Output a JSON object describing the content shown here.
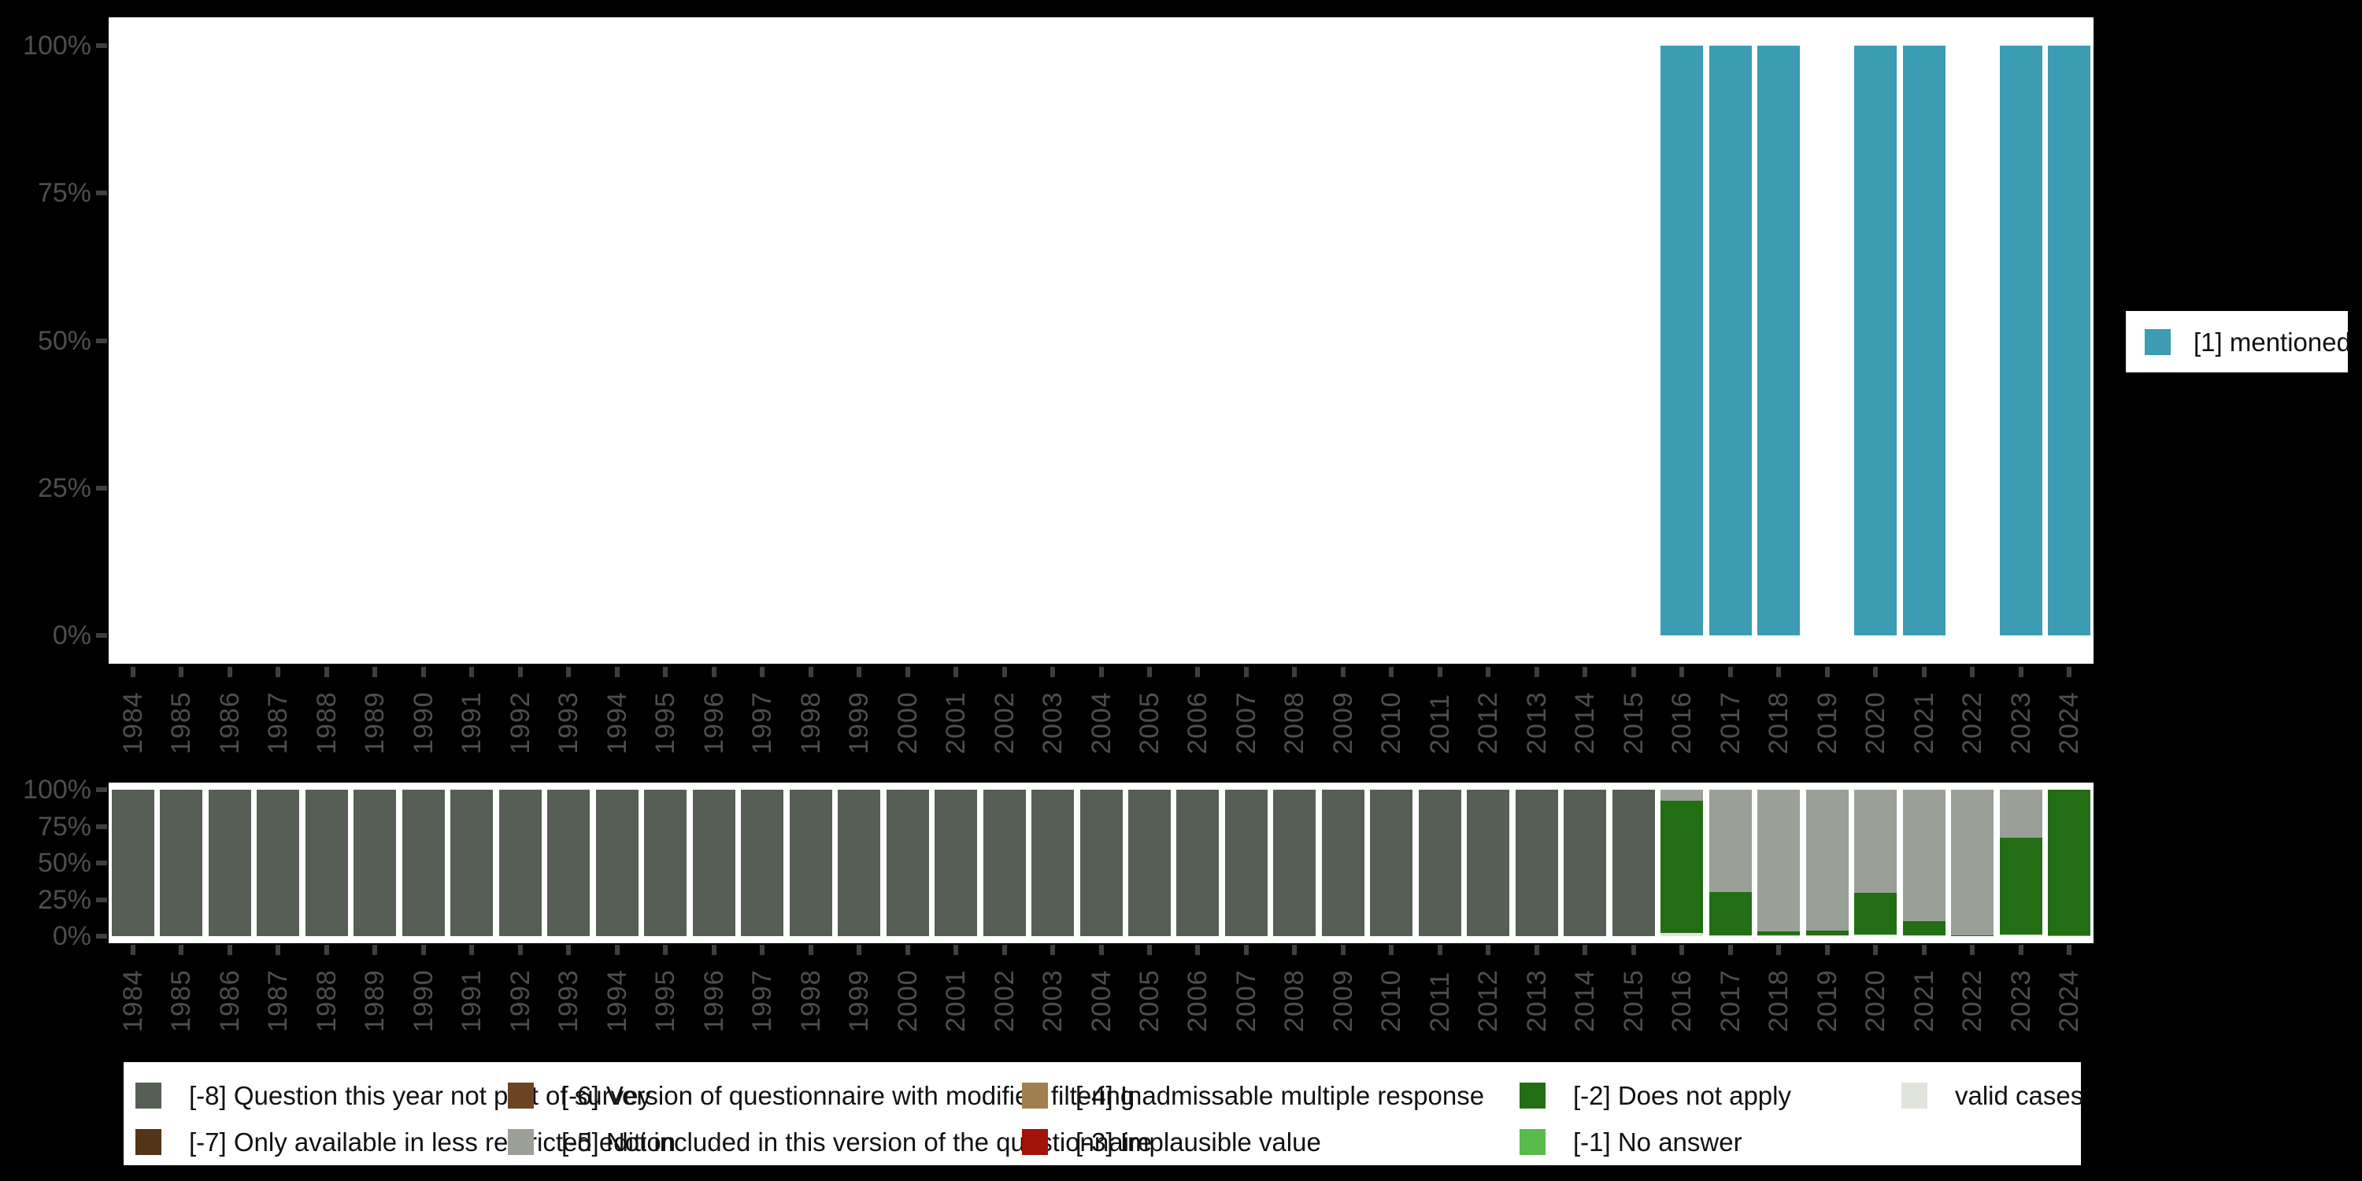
{
  "page": {
    "background": "#000000",
    "panel_background": "#ffffff"
  },
  "colors": {
    "mentioned": "#3b9cb2",
    "m8": "#565e56",
    "m7": "#533418",
    "m6": "#6b4423",
    "m5": "#9aa098",
    "m4": "#a1804f",
    "m3": "#a21309",
    "m2": "#236e15",
    "m1": "#58bb4c",
    "valid": "#e0e4dc",
    "axis_text": "#4e4e4e",
    "tick": "#3f3f3f"
  },
  "years": [
    "1984",
    "1985",
    "1986",
    "1987",
    "1988",
    "1989",
    "1990",
    "1991",
    "1992",
    "1993",
    "1994",
    "1995",
    "1996",
    "1997",
    "1998",
    "1999",
    "2000",
    "2001",
    "2002",
    "2003",
    "2004",
    "2005",
    "2006",
    "2007",
    "2008",
    "2009",
    "2010",
    "2011",
    "2012",
    "2013",
    "2014",
    "2015",
    "2016",
    "2017",
    "2018",
    "2019",
    "2020",
    "2021",
    "2022",
    "2023",
    "2024"
  ],
  "y_axis_ticks": [
    {
      "label": "100%",
      "pct": 100
    },
    {
      "label": "75%",
      "pct": 75
    },
    {
      "label": "50%",
      "pct": 50
    },
    {
      "label": "25%",
      "pct": 25
    },
    {
      "label": "0%",
      "pct": 0
    }
  ],
  "legend_right": {
    "label": "[1] mentioned",
    "key": "mentioned"
  },
  "legend_bottom": {
    "items": [
      {
        "key": "m8",
        "label": "[-8] Question this year not part of survey",
        "col": 0,
        "row": 0
      },
      {
        "key": "m7",
        "label": "[-7] Only available in less restricted edition",
        "col": 0,
        "row": 1
      },
      {
        "key": "m6",
        "label": "[-6] Version of questionnaire with modified filtering",
        "col": 1,
        "row": 0
      },
      {
        "key": "m5",
        "label": "[-5] Not included in this version of the questionnaire",
        "col": 1,
        "row": 1
      },
      {
        "key": "m4",
        "label": "[-4] Inadmissable multiple response",
        "col": 2,
        "row": 0
      },
      {
        "key": "m3",
        "label": "[-3] Implausible value",
        "col": 2,
        "row": 1
      },
      {
        "key": "m2",
        "label": "[-2] Does not apply",
        "col": 3,
        "row": 0
      },
      {
        "key": "m1",
        "label": "[-1] No answer",
        "col": 3,
        "row": 1
      },
      {
        "key": "valid",
        "label": "valid cases",
        "col": 4,
        "row": 0
      }
    ]
  },
  "chart_data": [
    {
      "type": "bar",
      "title": "",
      "ylabel": "",
      "ylim": [
        0,
        100
      ],
      "ytick_labels": [
        "100%",
        "75%",
        "50%",
        "25%",
        "0%"
      ],
      "categories": [
        "1984",
        "1985",
        "1986",
        "1987",
        "1988",
        "1989",
        "1990",
        "1991",
        "1992",
        "1993",
        "1994",
        "1995",
        "1996",
        "1997",
        "1998",
        "1999",
        "2000",
        "2001",
        "2002",
        "2003",
        "2004",
        "2005",
        "2006",
        "2007",
        "2008",
        "2009",
        "2010",
        "2011",
        "2012",
        "2013",
        "2014",
        "2015",
        "2016",
        "2017",
        "2018",
        "2019",
        "2020",
        "2021",
        "2022",
        "2023",
        "2024"
      ],
      "series": [
        {
          "name": "[1] mentioned",
          "color_key": "mentioned",
          "values": [
            0,
            0,
            0,
            0,
            0,
            0,
            0,
            0,
            0,
            0,
            0,
            0,
            0,
            0,
            0,
            0,
            0,
            0,
            0,
            0,
            0,
            0,
            0,
            0,
            0,
            0,
            0,
            0,
            0,
            0,
            0,
            0,
            100,
            100,
            100,
            0,
            100,
            100,
            0,
            100,
            100
          ]
        }
      ],
      "legend_position": "right"
    },
    {
      "type": "stacked-bar",
      "title": "",
      "ylim": [
        0,
        100
      ],
      "ytick_labels": [
        "100%",
        "75%",
        "50%",
        "25%",
        "0%"
      ],
      "categories": [
        "1984",
        "1985",
        "1986",
        "1987",
        "1988",
        "1989",
        "1990",
        "1991",
        "1992",
        "1993",
        "1994",
        "1995",
        "1996",
        "1997",
        "1998",
        "1999",
        "2000",
        "2001",
        "2002",
        "2003",
        "2004",
        "2005",
        "2006",
        "2007",
        "2008",
        "2009",
        "2010",
        "2011",
        "2012",
        "2013",
        "2014",
        "2015",
        "2016",
        "2017",
        "2018",
        "2019",
        "2020",
        "2021",
        "2022",
        "2023",
        "2024"
      ],
      "stack_order_note": "segments listed top-to-bottom of each bar, values in percent",
      "default_segments": [
        [
          "m8",
          100
        ]
      ],
      "bar_overrides": {
        "2016": [
          [
            "m5",
            7.5
          ],
          [
            "m2",
            90.5
          ],
          [
            "valid",
            2.0
          ]
        ],
        "2017": [
          [
            "m5",
            70.0
          ],
          [
            "m2",
            29.3
          ],
          [
            "valid",
            0.7
          ]
        ],
        "2018": [
          [
            "m5",
            97.0
          ],
          [
            "m2",
            2.6
          ],
          [
            "valid",
            0.4
          ]
        ],
        "2019": [
          [
            "m5",
            96.5
          ],
          [
            "m2",
            3.1
          ],
          [
            "valid",
            0.4
          ]
        ],
        "2020": [
          [
            "m5",
            70.5
          ],
          [
            "m2",
            28.2
          ],
          [
            "valid",
            1.3
          ]
        ],
        "2021": [
          [
            "m5",
            89.9
          ],
          [
            "m2",
            9.8
          ],
          [
            "valid",
            0.3
          ]
        ],
        "2022": [
          [
            "m5",
            99.4
          ],
          [
            "m2",
            0.6
          ]
        ],
        "2023": [
          [
            "m5",
            32.8
          ],
          [
            "m2",
            66.0
          ],
          [
            "valid",
            1.2
          ]
        ],
        "2024": [
          [
            "m2",
            99.6
          ],
          [
            "m1",
            0.4
          ]
        ]
      },
      "legend_position": "bottom"
    }
  ]
}
